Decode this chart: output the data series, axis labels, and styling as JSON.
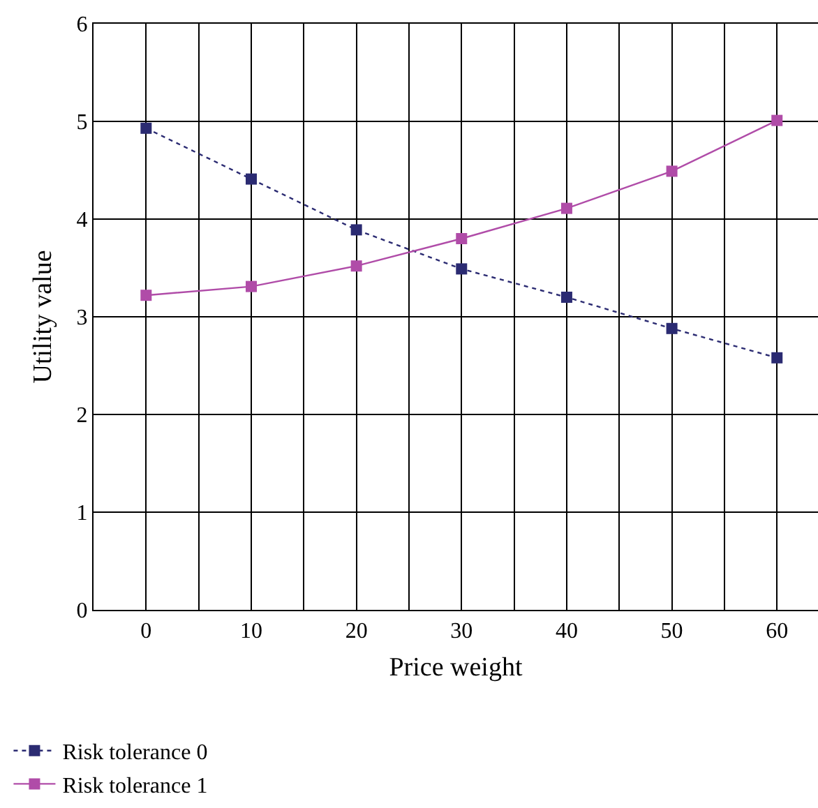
{
  "chart_data": {
    "type": "line",
    "xlabel": "Price weight",
    "ylabel": "Utility value",
    "x": [
      0,
      10,
      20,
      30,
      40,
      50,
      60
    ],
    "series": [
      {
        "name": "Risk tolerance 0",
        "color": "#2b2b72",
        "line_style": "dotted",
        "values": [
          4.93,
          4.41,
          3.89,
          3.49,
          3.2,
          2.88,
          2.58
        ]
      },
      {
        "name": "Risk tolerance 1",
        "color": "#b04ca8",
        "line_style": "solid",
        "values": [
          3.22,
          3.31,
          3.52,
          3.8,
          4.11,
          4.49,
          5.01
        ]
      }
    ],
    "marker": "square",
    "xlim": [
      -5,
      63.9
    ],
    "xticks": [
      {
        "value": -5,
        "label": null
      },
      0,
      {
        "value": 5,
        "label": null
      },
      10,
      {
        "value": 15,
        "label": null
      },
      20,
      {
        "value": 25,
        "label": null
      },
      30,
      {
        "value": 35,
        "label": null
      },
      40,
      {
        "value": 45,
        "label": null
      },
      50,
      {
        "value": 55,
        "label": null
      },
      60
    ],
    "ylim": [
      0,
      6
    ],
    "yticks": [
      0,
      1,
      2,
      3,
      4,
      5,
      6
    ],
    "grid": true,
    "legend": "bottom left"
  }
}
